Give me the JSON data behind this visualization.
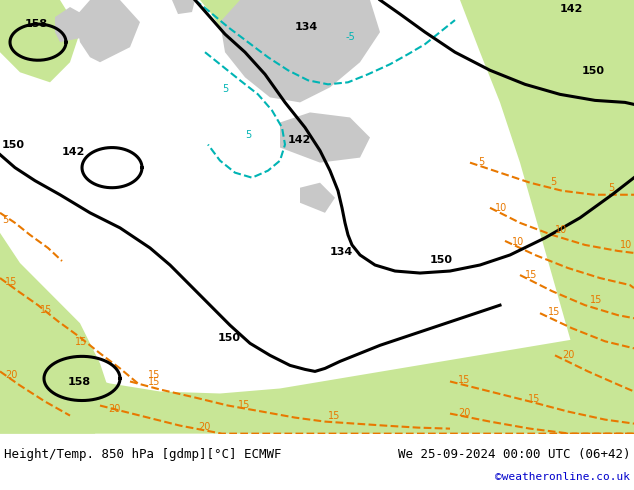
{
  "title_left": "Height/Temp. 850 hPa [gdmp][°C] ECMWF",
  "title_right": "We 25-09-2024 00:00 UTC (06+42)",
  "credit": "©weatheronline.co.uk",
  "bg_color": "#ffffff",
  "fig_width": 6.34,
  "fig_height": 4.9,
  "colors": {
    "light_green": "#c8e696",
    "mid_green": "#a8d464",
    "gray": "#b4b4b4",
    "light_gray": "#c8c8c8",
    "ocean": "#ffffff",
    "black": "#000000",
    "cyan": "#00b4b4",
    "orange": "#e87800",
    "red": "#cc0000",
    "blue_credit": "#0000cc"
  },
  "font_sizes": {
    "title": 9,
    "credit": 8,
    "contour_label": 8,
    "temp_label": 7
  }
}
